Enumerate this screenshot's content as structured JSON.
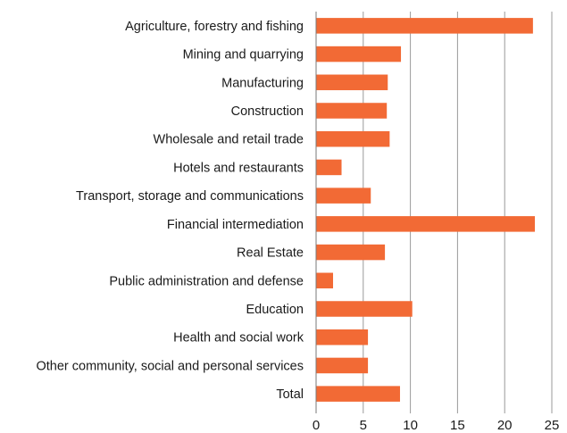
{
  "chart_data": {
    "type": "bar",
    "orientation": "horizontal",
    "title": "",
    "xlabel": "",
    "ylabel": "",
    "xlim": [
      0,
      25
    ],
    "xticks": [
      0,
      5,
      10,
      15,
      20,
      25
    ],
    "grid": "vertical",
    "bar_color": "#f26a35",
    "categories": [
      "Agriculture, forestry and fishing",
      "Mining and quarrying",
      "Manufacturing",
      "Construction",
      "Wholesale and retail trade",
      "Hotels and restaurants",
      "Transport, storage and communications",
      "Financial intermediation",
      "Real Estate",
      "Public administration and defense",
      "Education",
      "Health and social work",
      "Other community, social and personal services",
      "Total"
    ],
    "values": [
      23.0,
      9.0,
      7.6,
      7.5,
      7.8,
      2.7,
      5.8,
      23.2,
      7.3,
      1.8,
      10.2,
      5.5,
      5.5,
      8.9
    ]
  }
}
